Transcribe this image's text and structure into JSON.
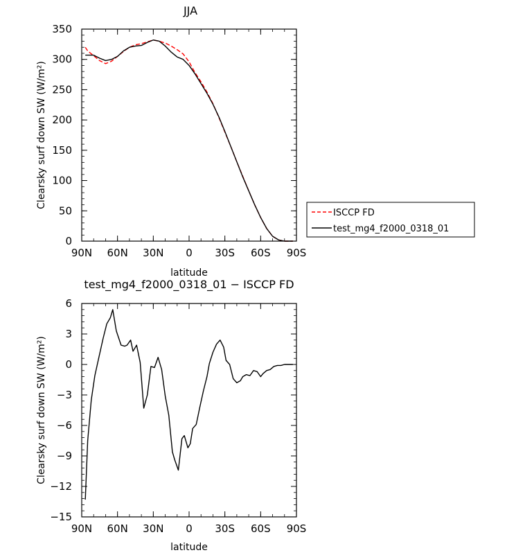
{
  "chart_data": [
    {
      "type": "line",
      "title": "JJA",
      "xlabel": "latitude",
      "ylabel": "Clearsky surf down SW (W/m²)",
      "x_tick_labels": [
        "90N",
        "60N",
        "30N",
        "0",
        "30S",
        "60S",
        "90S"
      ],
      "x_tick_values": [
        90,
        60,
        30,
        0,
        -30,
        -60,
        -90
      ],
      "y_tick_labels": [
        "0",
        "50",
        "100",
        "150",
        "200",
        "250",
        "300",
        "350"
      ],
      "y_tick_values": [
        0,
        50,
        100,
        150,
        200,
        250,
        300,
        350
      ],
      "xlim": [
        90,
        -90
      ],
      "ylim": [
        0,
        350
      ],
      "legend_position": "right-bottom outside",
      "series": [
        {
          "name": "ISCCP FD",
          "color": "#ff0000",
          "dash": "dashed",
          "x": [
            87,
            85,
            80,
            75,
            70,
            65,
            60,
            55,
            50,
            45,
            40,
            35,
            30,
            25,
            20,
            15,
            10,
            5,
            0,
            -5,
            -10,
            -15,
            -20,
            -25,
            -30,
            -35,
            -40,
            -45,
            -50,
            -55,
            -60,
            -65,
            -70,
            -75,
            -80,
            -85,
            -87
          ],
          "y": [
            320,
            314,
            306,
            298,
            293,
            297,
            305,
            313,
            320,
            324,
            326,
            329,
            332,
            330,
            327,
            322,
            316,
            309,
            296,
            278,
            263,
            246,
            227,
            204,
            180,
            156,
            131,
            107,
            83,
            60,
            39,
            21,
            8,
            2,
            0,
            0,
            0
          ]
        },
        {
          "name": "test_mg4_f2000_0318_01",
          "color": "#000000",
          "dash": "solid",
          "x": [
            87,
            85,
            80,
            75,
            70,
            65,
            60,
            55,
            50,
            45,
            40,
            35,
            30,
            25,
            20,
            15,
            10,
            5,
            0,
            -5,
            -10,
            -15,
            -20,
            -25,
            -30,
            -35,
            -40,
            -45,
            -50,
            -55,
            -60,
            -65,
            -70,
            -75,
            -80,
            -85,
            -87
          ],
          "y": [
            307,
            307,
            307,
            302,
            298,
            300,
            305,
            314,
            320,
            322,
            323,
            328,
            332,
            330,
            322,
            312,
            304,
            300,
            290,
            276,
            260,
            244,
            226,
            205,
            181,
            156,
            131,
            106,
            83,
            60,
            39,
            21,
            8,
            2,
            0,
            0,
            0
          ]
        }
      ]
    },
    {
      "type": "line",
      "title": "test_mg4_f2000_0318_01 − ISCCP FD",
      "xlabel": "latitude",
      "ylabel": "Clearsky surf down SW (W/m²)",
      "x_tick_labels": [
        "90N",
        "60N",
        "30N",
        "0",
        "30S",
        "60S",
        "90S"
      ],
      "x_tick_values": [
        90,
        60,
        30,
        0,
        -30,
        -60,
        -90
      ],
      "y_tick_labels": [
        "6",
        "3",
        "0",
        "−3",
        "−6",
        "−9",
        "−12",
        "−15"
      ],
      "y_tick_values": [
        6,
        3,
        0,
        -3,
        -6,
        -9,
        -12,
        -15
      ],
      "xlim": [
        90,
        -90
      ],
      "ylim": [
        -15,
        6
      ],
      "series": [
        {
          "name": "",
          "color": "#000000",
          "dash": "solid",
          "x": [
            87,
            85,
            82,
            79,
            76,
            72,
            69,
            66,
            64,
            61,
            57,
            54,
            52,
            49,
            47,
            44,
            41,
            38,
            35,
            32,
            29,
            26,
            23,
            20,
            17,
            14,
            12,
            9,
            6,
            4,
            1,
            -1,
            -3,
            -6,
            -9,
            -12,
            -15,
            -17,
            -20,
            -23,
            -26,
            -29,
            -31,
            -34,
            -37,
            -40,
            -43,
            -45,
            -48,
            -51,
            -54,
            -57,
            -60,
            -62,
            -65,
            -68,
            -71,
            -74,
            -77,
            -80,
            -83,
            -87
          ],
          "y": [
            -13.3,
            -7.5,
            -3.5,
            -1.1,
            0.5,
            2.6,
            4,
            4.6,
            5.4,
            3.3,
            1.9,
            1.8,
            1.9,
            2.4,
            1.3,
            1.9,
            0.2,
            -4.3,
            -3,
            -0.2,
            -0.3,
            0.7,
            -0.5,
            -3.1,
            -5,
            -8.6,
            -9.4,
            -10.4,
            -7.3,
            -7,
            -8.2,
            -7.8,
            -6.3,
            -5.9,
            -4.2,
            -2.6,
            -1.2,
            0.1,
            1.2,
            2,
            2.4,
            1.7,
            0.4,
            0,
            -1.4,
            -1.8,
            -1.6,
            -1.2,
            -1,
            -1.1,
            -0.6,
            -0.7,
            -1.2,
            -0.9,
            -0.6,
            -0.5,
            -0.2,
            -0.1,
            -0.1,
            0,
            0,
            0
          ]
        }
      ]
    }
  ]
}
